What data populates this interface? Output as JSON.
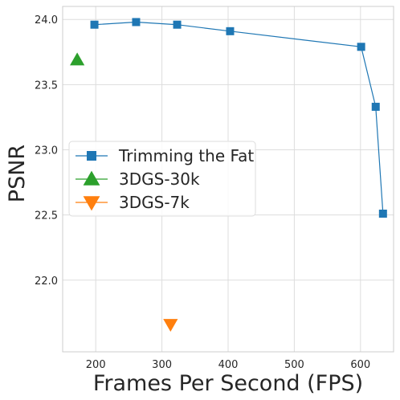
{
  "chart_data": {
    "type": "line",
    "title": "",
    "xlabel": "Frames Per Second (FPS)",
    "ylabel": "PSNR",
    "xlim": [
      150,
      650
    ],
    "ylim": [
      21.45,
      24.1
    ],
    "xticks": [
      200,
      300,
      400,
      500,
      600
    ],
    "yticks": [
      22.0,
      22.5,
      23.0,
      23.5,
      24.0
    ],
    "xtick_labels": [
      "200",
      "300",
      "400",
      "500",
      "600"
    ],
    "ytick_labels": [
      "22.0",
      "22.5",
      "23.0",
      "23.5",
      "24.0"
    ],
    "grid": true,
    "legend_position": "center-left",
    "series": [
      {
        "name": "Trimming the Fat",
        "color": "#1f77b4",
        "marker": "square",
        "line": true,
        "points": [
          {
            "x": 198,
            "y": 23.96
          },
          {
            "x": 261,
            "y": 23.98
          },
          {
            "x": 323,
            "y": 23.96
          },
          {
            "x": 403,
            "y": 23.91
          },
          {
            "x": 601,
            "y": 23.79
          },
          {
            "x": 623,
            "y": 23.33
          },
          {
            "x": 634,
            "y": 22.51
          }
        ]
      },
      {
        "name": "3DGS-30k",
        "color": "#2ca02c",
        "marker": "triangle-up",
        "line": false,
        "points": [
          {
            "x": 172,
            "y": 23.69
          }
        ]
      },
      {
        "name": "3DGS-7k",
        "color": "#ff7f0e",
        "marker": "triangle-down",
        "line": false,
        "points": [
          {
            "x": 313,
            "y": 21.66
          }
        ]
      }
    ]
  }
}
